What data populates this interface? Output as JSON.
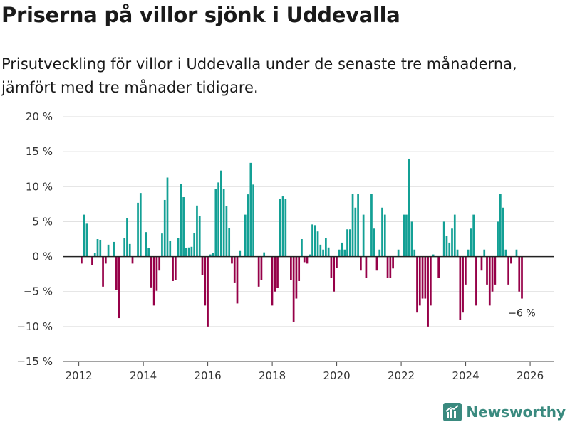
{
  "header": {
    "title": "Priserna på villor sjönk i Uddevalla",
    "subtitle": "Prisutveckling för villor i Uddevalla under de senaste tre månaderna, jämfört med tre månader tidigare."
  },
  "brand": {
    "name": "Newsworthy",
    "color": "#3a8a7f"
  },
  "chart_data": {
    "type": "bar",
    "title": "Priserna på villor sjönk i Uddevalla",
    "xlabel": "",
    "ylabel": "",
    "x_range": [
      2011.5,
      2026.75
    ],
    "ylim": [
      -15,
      20
    ],
    "y_ticks": [
      20,
      15,
      10,
      5,
      0,
      -5,
      -10,
      -15
    ],
    "y_tick_labels": [
      "20 %",
      "15 %",
      "10 %",
      "5 %",
      "0 %",
      "−5 %",
      "−10 %",
      "−15 %"
    ],
    "x_ticks": [
      2012,
      2014,
      2016,
      2018,
      2020,
      2022,
      2024,
      2026
    ],
    "x_tick_labels": [
      "2012",
      "2014",
      "2016",
      "2018",
      "2020",
      "2022",
      "2024",
      "2026"
    ],
    "grid": true,
    "colors": {
      "positive": "#13a095",
      "negative": "#960048",
      "grid": "#dddddd",
      "zero": "#222222"
    },
    "start": 2012.0,
    "step": 0.0833,
    "values": [
      0,
      -1,
      6,
      4.7,
      0,
      -1.2,
      0.5,
      2.5,
      2.4,
      -4.3,
      -1,
      1.7,
      0,
      2.1,
      -4.8,
      -8.8,
      0,
      2.7,
      5.5,
      1.8,
      -1,
      0,
      7.7,
      9.1,
      0,
      3.5,
      1.2,
      -4.4,
      -7,
      -4.9,
      -2,
      3.3,
      8.1,
      11.3,
      2.3,
      -3.5,
      -3.3,
      2.7,
      10.4,
      8.5,
      1.2,
      1.3,
      1.4,
      3.4,
      7.3,
      5.8,
      -2.6,
      -7,
      -10,
      0.3,
      0.5,
      9.7,
      10.6,
      12.3,
      9.7,
      7.2,
      4.1,
      -1,
      -3.7,
      -6.7,
      0.9,
      0,
      6,
      8.9,
      13.4,
      10.3,
      0,
      -4.3,
      -3.3,
      0.6,
      0,
      0,
      -7,
      -5,
      -4.5,
      8.3,
      8.6,
      8.3,
      0,
      -3.3,
      -9.3,
      -6,
      -3.5,
      2.5,
      -0.8,
      -1,
      0.3,
      4.6,
      4.5,
      3.6,
      1.7,
      1,
      2.7,
      1.3,
      -3,
      -5,
      -1.6,
      1,
      2,
      1,
      3.9,
      3.9,
      9,
      7,
      9,
      -2,
      6,
      -3,
      0,
      9,
      4,
      -2,
      1,
      7,
      6,
      -3,
      -3,
      -1.7,
      0,
      1,
      0,
      6,
      6,
      14,
      5,
      1,
      -8,
      -7,
      -6,
      -6,
      -10,
      -7,
      0.3,
      0,
      -3,
      0,
      5,
      3,
      2,
      4,
      6,
      1,
      -9,
      -8,
      -4,
      1,
      4,
      6,
      -7,
      0,
      -2,
      1,
      -4,
      -7,
      -5,
      -4,
      5,
      9,
      7,
      1,
      -4,
      -1,
      0,
      1,
      -5,
      -6
    ],
    "annotation": {
      "text": "−6 %",
      "value": -6
    }
  }
}
